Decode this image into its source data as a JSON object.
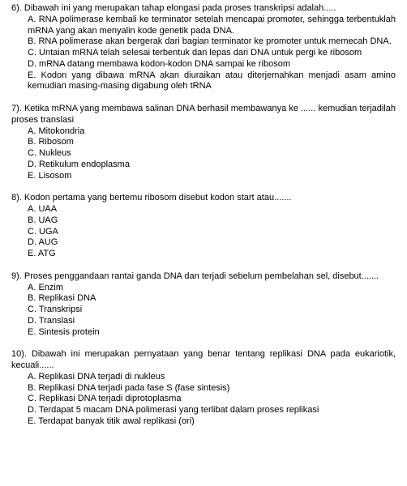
{
  "q6": {
    "stem": "6). Dibawah ini yang merupakan tahap elongasi pada proses transkripsi adalah.....",
    "A": "A. RNA polimerase kembali ke terminator setelah mencapai promoter, sehingga terbentuklah mRNA yang akan menyalin kode genetik pada DNA.",
    "B": "B. RNA polimerase akan bergerak dari bagian terminator ke promoter untuk memecah DNA.",
    "C": "C. Untaian mRNA telah selesai terbentuk dan lepas dari DNA untuk pergi ke ribosom",
    "D": "D. mRNA datang membawa kodon-kodon DNA sampai ke ribosom",
    "E": "E. Kodon yang dibawa mRNA akan diuraikan atau diterjemahkan menjadi asam amino kemudian masing-masing digabung oleh tRNA"
  },
  "q7": {
    "stem": "7). Ketika mRNA yang membawa salinan DNA berhasil membawanya ke ...... kemudian terjadilah proses translasi",
    "A": "A. Mitokondria",
    "B": "B. Ribosom",
    "C": "C. Nukleus",
    "D": "D. Retikulum endoplasma",
    "E": "E. Lisosom"
  },
  "q8": {
    "stem": "8).  Kodon pertama yang bertemu ribosom disebut kodon start atau.......",
    "A": "A. UAA",
    "B": "B. UAG",
    "C": "C. UGA",
    "D": "D. AUG",
    "E": "E. ATG"
  },
  "q9": {
    "stem": "9).  Proses  penggandaan  rantai  ganda DNA  dan  terjadi  sebelum pembelahan  sel, disebut.......",
    "A": "A. Enzim",
    "B": "B. Replikasi DNA",
    "C": "C. Transkripsi",
    "D": "D. Translasi",
    "E": "E. Sintesis protein"
  },
  "q10": {
    "stem": "10).  Dibawah  ini  merupakan  pernyataan  yang  benar  tentang  replikasi  DNA  pada eukariotik, kecuali......",
    "A": "A. Replikasi DNA terjadi di nukleus",
    "B": "B. Replikasi DNA terjadi pada fase S (fase sintesis)",
    "C": "C. Replikasi DNA terjadi diprotoplasma",
    "D": "D. Terdapat 5 macam DNA polimerasi yang terlibat dalam proses replikasi",
    "E": "E. Terdapat banyak titik awal replikasi (ori)"
  }
}
